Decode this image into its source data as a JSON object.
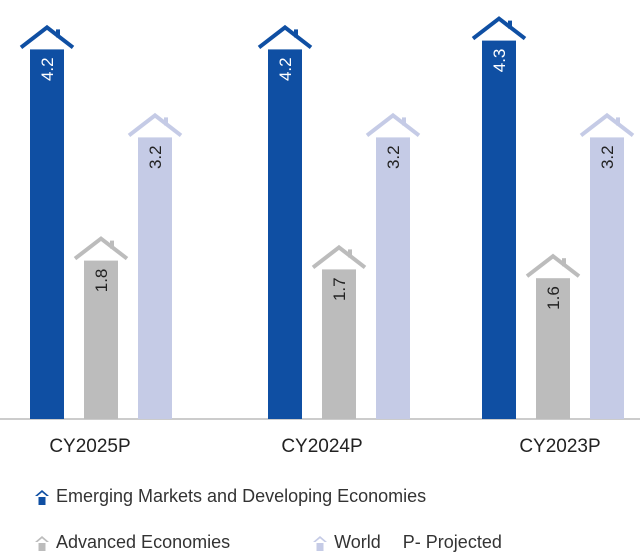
{
  "chart_data": {
    "type": "bar",
    "categories": [
      "CY2025P",
      "CY2024P",
      "CY2023P"
    ],
    "series": [
      {
        "name": "Emerging Markets and Developing Economies",
        "values": [
          4.2,
          4.2,
          4.3
        ],
        "color": "#0f4fa3"
      },
      {
        "name": "Advanced Economies",
        "values": [
          1.8,
          1.7,
          1.6
        ],
        "color": "#bcbcbc"
      },
      {
        "name": "World",
        "values": [
          3.2,
          3.2,
          3.2
        ],
        "color": "#c5cbe6"
      }
    ],
    "note": "P- Projected",
    "ylim": [
      0,
      4.6
    ],
    "grid": false,
    "legend_position": "bottom",
    "bar_icon": "house-roof-icon"
  }
}
